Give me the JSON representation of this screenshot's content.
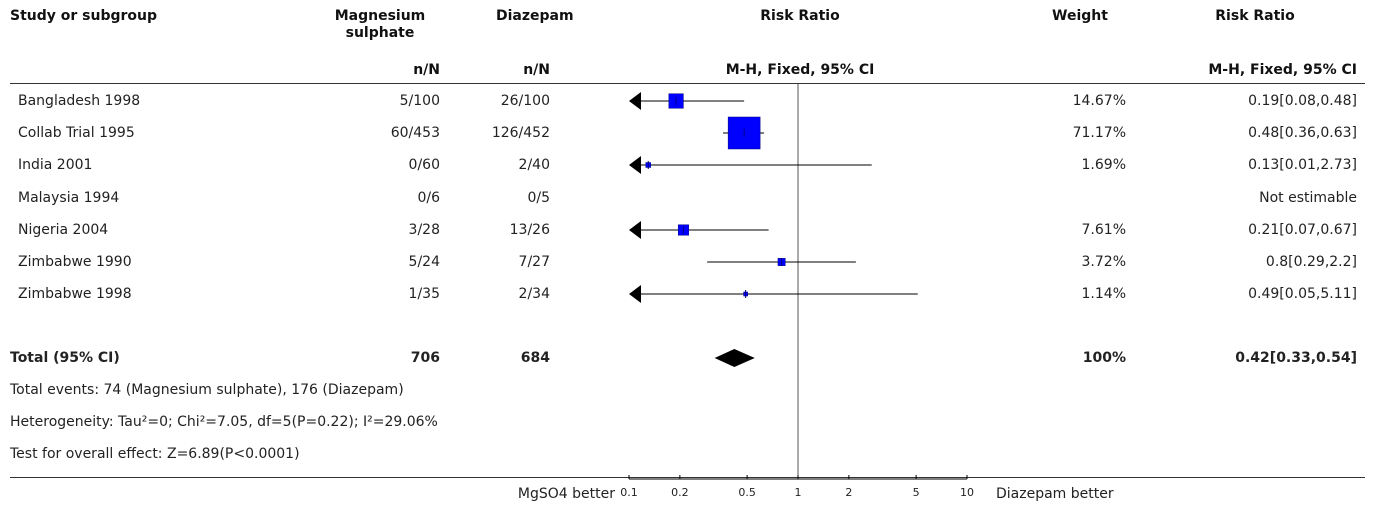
{
  "headers": {
    "study": "Study or subgroup",
    "exp": "Magnesium sulphate",
    "ctrl": "Diazepam",
    "rr": "Risk Ratio",
    "weight": "Weight",
    "rr_ci": "Risk Ratio",
    "exp_sub": "n/N",
    "ctrl_sub": "n/N",
    "rr_sub": "M-H, Fixed, 95% CI",
    "rr_ci_sub": "M-H, Fixed, 95% CI"
  },
  "studies": [
    {
      "name": "Bangladesh 1998",
      "exp": "5/100",
      "ctrl": "26/100",
      "weight": "14.67%",
      "ci": "0.19[0.08,0.48]"
    },
    {
      "name": "Collab Trial 1995",
      "exp": "60/453",
      "ctrl": "126/452",
      "weight": "71.17%",
      "ci": "0.48[0.36,0.63]"
    },
    {
      "name": "India 2001",
      "exp": "0/60",
      "ctrl": "2/40",
      "weight": "1.69%",
      "ci": "0.13[0.01,2.73]"
    },
    {
      "name": "Malaysia 1994",
      "exp": "0/6",
      "ctrl": "0/5",
      "weight": "",
      "ci": "Not estimable"
    },
    {
      "name": "Nigeria 2004",
      "exp": "3/28",
      "ctrl": "13/26",
      "weight": "7.61%",
      "ci": "0.21[0.07,0.67]"
    },
    {
      "name": "Zimbabwe 1990",
      "exp": "5/24",
      "ctrl": "7/27",
      "weight": "3.72%",
      "ci": "0.8[0.29,2.2]"
    },
    {
      "name": "Zimbabwe 1998",
      "exp": "1/35",
      "ctrl": "2/34",
      "weight": "1.14%",
      "ci": "0.49[0.05,5.11]"
    }
  ],
  "total": {
    "name": "Total (95% CI)",
    "exp": "706",
    "ctrl": "684",
    "weight": "100%",
    "ci": "0.42[0.33,0.54]"
  },
  "footnotes": {
    "events": "Total events: 74 (Magnesium sulphate), 176 (Diazepam)",
    "heterogeneity": "Heterogeneity: Tau²=0; Chi²=7.05, df=5(P=0.22); I²=29.06%",
    "overall": "Test for overall effect: Z=6.89(P<0.0001)"
  },
  "axis": {
    "left_label": "MgSO4 better",
    "right_label": "Diazepam better"
  },
  "colors": {
    "square": "#0000ff",
    "square_border": "#00007f",
    "line": "#000000"
  },
  "chart_data": {
    "type": "forest",
    "scale": "log",
    "xlim": [
      0.1,
      10
    ],
    "ticks": [
      0.1,
      0.2,
      0.5,
      1,
      2,
      5,
      10
    ],
    "tick_labels": [
      "0.1",
      "0.2",
      "0.5",
      "1",
      "2",
      "5",
      "10"
    ],
    "null_line": 1,
    "studies": [
      {
        "rr": 0.19,
        "lo": 0.08,
        "hi": 0.48,
        "weight": 14.67
      },
      {
        "rr": 0.48,
        "lo": 0.36,
        "hi": 0.63,
        "weight": 71.17
      },
      {
        "rr": 0.13,
        "lo": 0.01,
        "hi": 2.73,
        "weight": 1.69
      },
      null,
      {
        "rr": 0.21,
        "lo": 0.07,
        "hi": 0.67,
        "weight": 7.61
      },
      {
        "rr": 0.8,
        "lo": 0.29,
        "hi": 2.2,
        "weight": 3.72
      },
      {
        "rr": 0.49,
        "lo": 0.05,
        "hi": 5.11,
        "weight": 1.14
      }
    ],
    "total": {
      "rr": 0.42,
      "lo": 0.33,
      "hi": 0.54
    }
  }
}
